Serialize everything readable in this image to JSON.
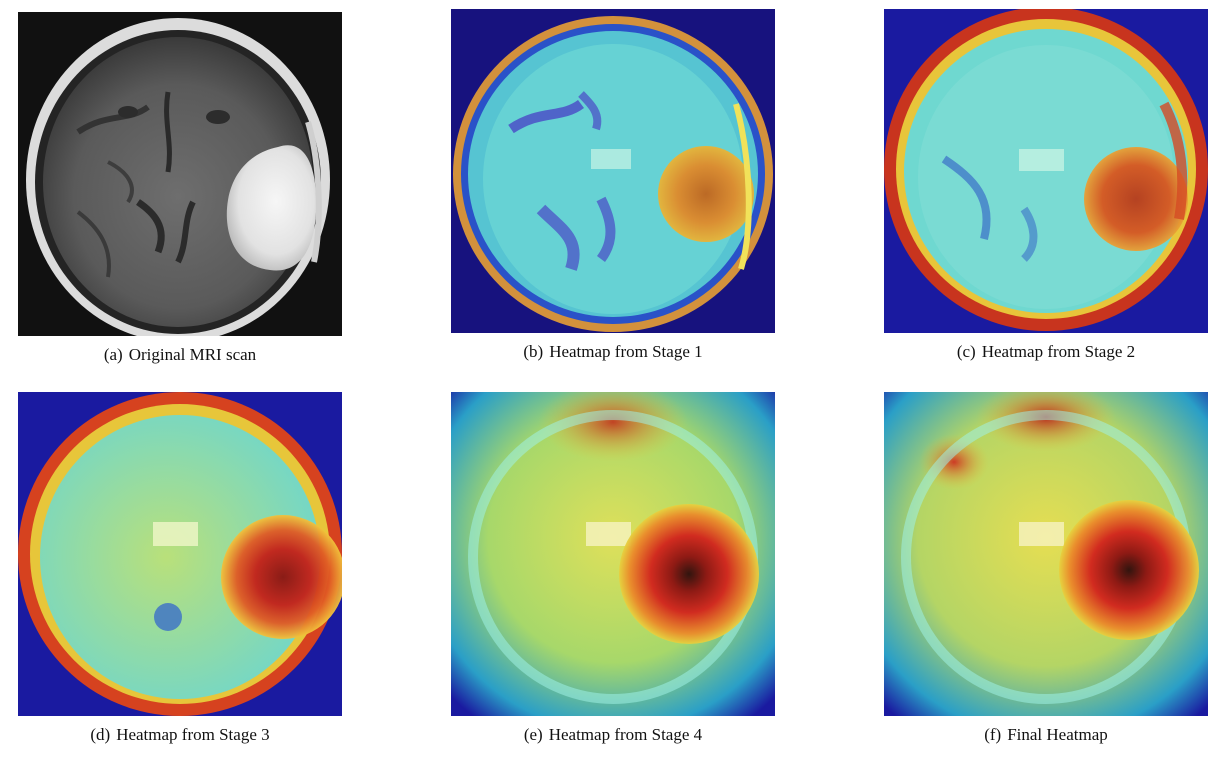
{
  "figure": {
    "panels": [
      {
        "id": "a",
        "tag": "(a)",
        "caption": "Original MRI scan",
        "kind": "mri"
      },
      {
        "id": "b",
        "tag": "(b)",
        "caption": "Heatmap from Stage 1",
        "kind": "heatmap-stage1"
      },
      {
        "id": "c",
        "tag": "(c)",
        "caption": "Heatmap from Stage 2",
        "kind": "heatmap-stage2"
      },
      {
        "id": "d",
        "tag": "(d)",
        "caption": "Heatmap from Stage 3",
        "kind": "heatmap-stage3"
      },
      {
        "id": "e",
        "tag": "(e)",
        "caption": "Heatmap from Stage 4",
        "kind": "heatmap-stage4"
      },
      {
        "id": "f",
        "tag": "(f)",
        "caption": "Final Heatmap",
        "kind": "heatmap-final"
      }
    ]
  },
  "colors": {
    "mri_background": "#111111",
    "heatmap_low": "#1a1aa0",
    "heatmap_mid": "#4fd9d6",
    "heatmap_warm": "#e8e03a",
    "heatmap_hot": "#d42a1e"
  }
}
